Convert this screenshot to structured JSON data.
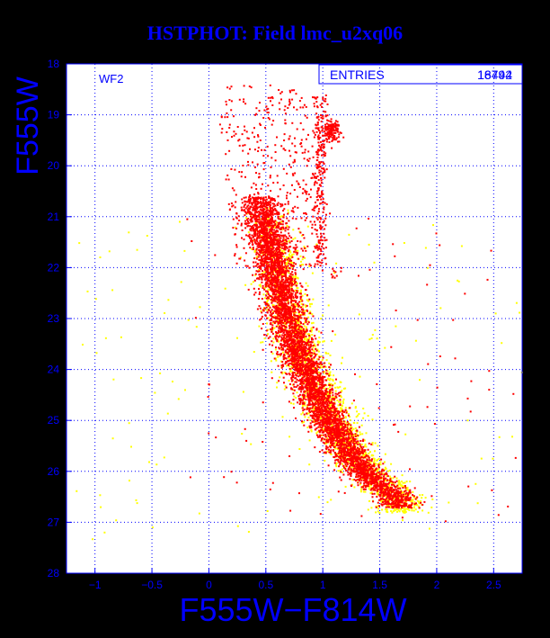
{
  "title": "HSTPHOT: Field lmc_u2xq06",
  "colors": {
    "background": "#000000",
    "plot_area": "#ffffff",
    "axis": "#0000ff",
    "grid": "#0000ff",
    "points_primary": "#ff0000",
    "points_secondary": "#ffff00"
  },
  "chart_data": {
    "type": "scatter",
    "title": "HSTPHOT: Field lmc_u2xq06",
    "xlabel": "F555W−F814W",
    "ylabel": "F555W",
    "xlim": [
      -1.25,
      2.75
    ],
    "ylim": [
      28,
      18
    ],
    "x_ticks": [
      -1,
      -0.5,
      0,
      0.5,
      1,
      1.5,
      2,
      2.5
    ],
    "x_tick_labels": [
      "−1",
      "−0.5",
      "0",
      "0.5",
      "1",
      "1.5",
      "2",
      "2.5"
    ],
    "y_ticks": [
      18,
      19,
      20,
      21,
      22,
      23,
      24,
      25,
      26,
      27,
      28
    ],
    "y_tick_labels": [
      "18",
      "19",
      "20",
      "21",
      "22",
      "23",
      "24",
      "25",
      "26",
      "27",
      "28"
    ],
    "grid": true,
    "y_inverted": true,
    "panel_label": "WF2",
    "stats_box": {
      "label": "ENTRIES",
      "values": [
        "18794",
        "16442"
      ]
    },
    "main_sequence": [
      [
        0.45,
        20.8
      ],
      [
        0.5,
        21.3
      ],
      [
        0.55,
        21.8
      ],
      [
        0.6,
        22.3
      ],
      [
        0.66,
        22.8
      ],
      [
        0.72,
        23.3
      ],
      [
        0.8,
        23.8
      ],
      [
        0.9,
        24.3
      ],
      [
        1.0,
        24.8
      ],
      [
        1.12,
        25.3
      ],
      [
        1.27,
        25.8
      ],
      [
        1.45,
        26.2
      ],
      [
        1.65,
        26.5
      ]
    ],
    "red_giant_branch": [
      [
        0.97,
        22.0
      ],
      [
        0.99,
        21.0
      ],
      [
        1.01,
        20.0
      ],
      [
        1.05,
        19.0
      ],
      [
        1.08,
        18.6
      ]
    ],
    "red_clump": {
      "x": 1.07,
      "y": 19.3
    },
    "series": [
      {
        "color": "#ff0000",
        "count": 16442
      },
      {
        "color": "#ffff00",
        "count": 18794
      }
    ]
  }
}
